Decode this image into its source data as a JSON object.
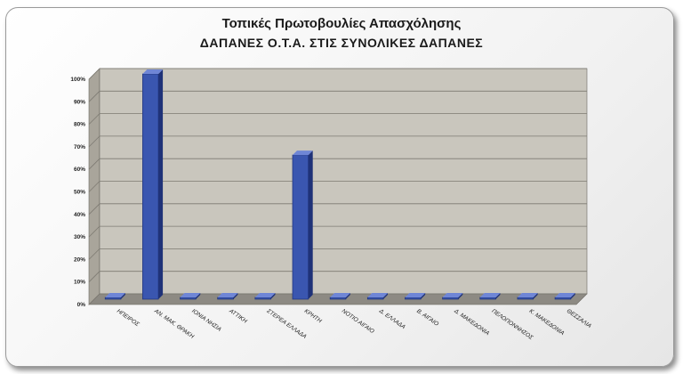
{
  "chart_data": {
    "type": "bar",
    "title": "Τοπικές Πρωτοβουλίες Απασχόλησης",
    "subtitle": "ΔΑΠΑΝΕΣ Ο.Τ.Α. ΣΤΙΣ ΣΥΝΟΛΙΚΕΣ ΔΑΠΑΝΕΣ",
    "categories": [
      "ΗΠΕΙΡΟΣ",
      "ΑΝ. ΜΑΚ. ΘΡΑΚΗ",
      "ΙΟΝΙΑ ΝΗΣΙΑ",
      "ΑΤΤΙΚΗ",
      "ΣΤΕΡΕΑ ΕΛΛΑΔΑ",
      "ΚΡΗΤΗ",
      "ΝΟΤΙΟ ΑΙΓΑΙΟ",
      "Δ. ΕΛΛΑΔΑ",
      "Β. ΑΙΓΑΙΟ",
      "Δ. ΜΑΚΕΔΟΝΙΑ",
      "ΠΕΛΟΠΟΝΝΗΣΟΣ",
      "Κ. ΜΑΚΕΔΟΝΙΑ",
      "ΘΕΣΣΑΛΙΑ"
    ],
    "values": [
      0,
      100,
      0,
      0,
      0,
      64,
      0,
      0,
      0,
      0,
      0,
      0,
      0
    ],
    "yticks": [
      "0%",
      "10%",
      "20%",
      "30%",
      "40%",
      "50%",
      "60%",
      "70%",
      "80%",
      "90%",
      "100%"
    ],
    "ylim": [
      0,
      100
    ],
    "grid": true,
    "colors": {
      "bar": "#3a56b0",
      "bar_dark": "#1f3278",
      "plot_bg": "#c9c6bd",
      "wall": "#a9a59b",
      "grid": "#7d7a72"
    }
  }
}
